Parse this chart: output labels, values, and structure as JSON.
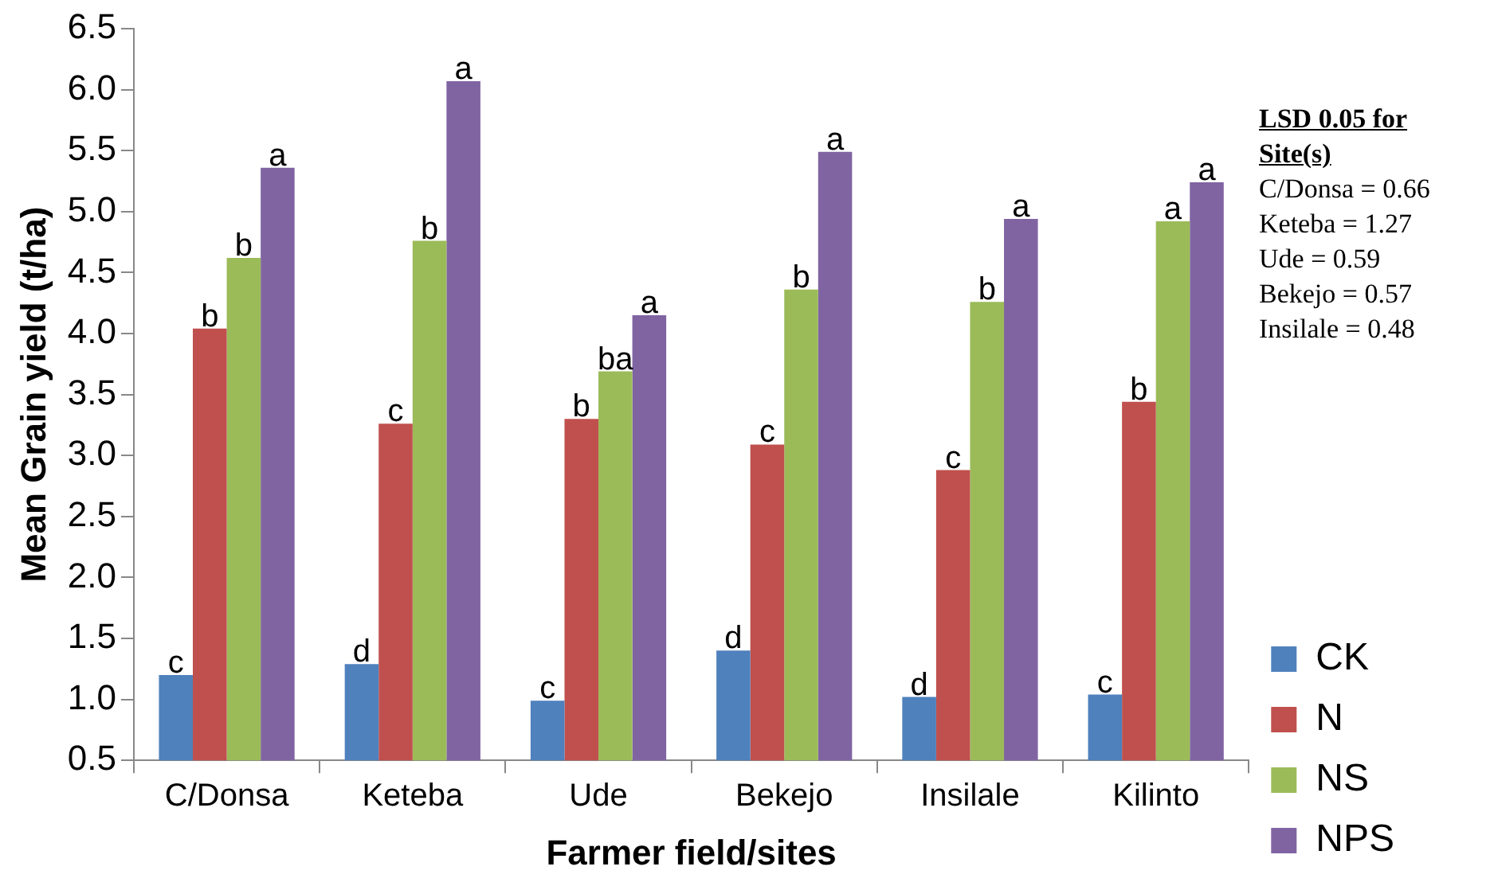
{
  "chart_data": {
    "type": "bar",
    "xlabel": "Farmer field/sites",
    "ylabel": "Mean Grain yield (t/ha)",
    "categories": [
      "C/Donsa",
      "Keteba",
      "Ude",
      "Bekejo",
      "Insilale",
      "Kilinto"
    ],
    "series": [
      {
        "name": "CK",
        "color": "#4f81bd",
        "values": [
          1.2,
          1.29,
          0.99,
          1.4,
          1.02,
          1.04
        ],
        "value_labels": [
          "c",
          "d",
          "c",
          "d",
          "d",
          "c"
        ]
      },
      {
        "name": "N",
        "color": "#c0504d",
        "values": [
          4.04,
          3.26,
          3.3,
          3.09,
          2.88,
          3.44
        ],
        "value_labels": [
          "b",
          "c",
          "b",
          "c",
          "c",
          "b"
        ]
      },
      {
        "name": "NS",
        "color": "#9bbb59",
        "values": [
          4.62,
          4.76,
          3.69,
          4.36,
          4.26,
          4.92
        ],
        "value_labels": [
          "b",
          "b",
          "ba",
          "b",
          "b",
          "a"
        ]
      },
      {
        "name": "NPS",
        "color": "#8064a2",
        "values": [
          5.36,
          6.07,
          4.15,
          5.49,
          4.94,
          5.24
        ],
        "value_labels": [
          "a",
          "a",
          "a",
          "a",
          "a",
          "a"
        ]
      }
    ],
    "ylim": [
      0.5,
      6.5
    ],
    "yticks": [
      {
        "value": 0.5,
        "label": "0.5"
      },
      {
        "value": 1,
        "label": "1.0"
      },
      {
        "value": 1.5,
        "label": "1.5"
      },
      {
        "value": 2,
        "label": "2.0"
      },
      {
        "value": 2.5,
        "label": "2.5"
      },
      {
        "value": 3,
        "label": "3.0"
      },
      {
        "value": 3.5,
        "label": "3.5"
      },
      {
        "value": 4,
        "label": "4.0"
      },
      {
        "value": 4.5,
        "label": "4.5"
      },
      {
        "value": 5,
        "label": "5.0"
      },
      {
        "value": 5.5,
        "label": "5.5"
      },
      {
        "value": 6,
        "label": "6.0"
      },
      {
        "value": 6.5,
        "label": "6.5"
      }
    ],
    "grid": false,
    "legend": "right",
    "annotations": [
      "LSD 0.05 for Site(s)",
      "C/Donsa = 0.66",
      "Keteba = 1.27",
      "Ude = 0.59",
      "Bekejo = 0.57",
      "Insilale = 0.48"
    ]
  }
}
